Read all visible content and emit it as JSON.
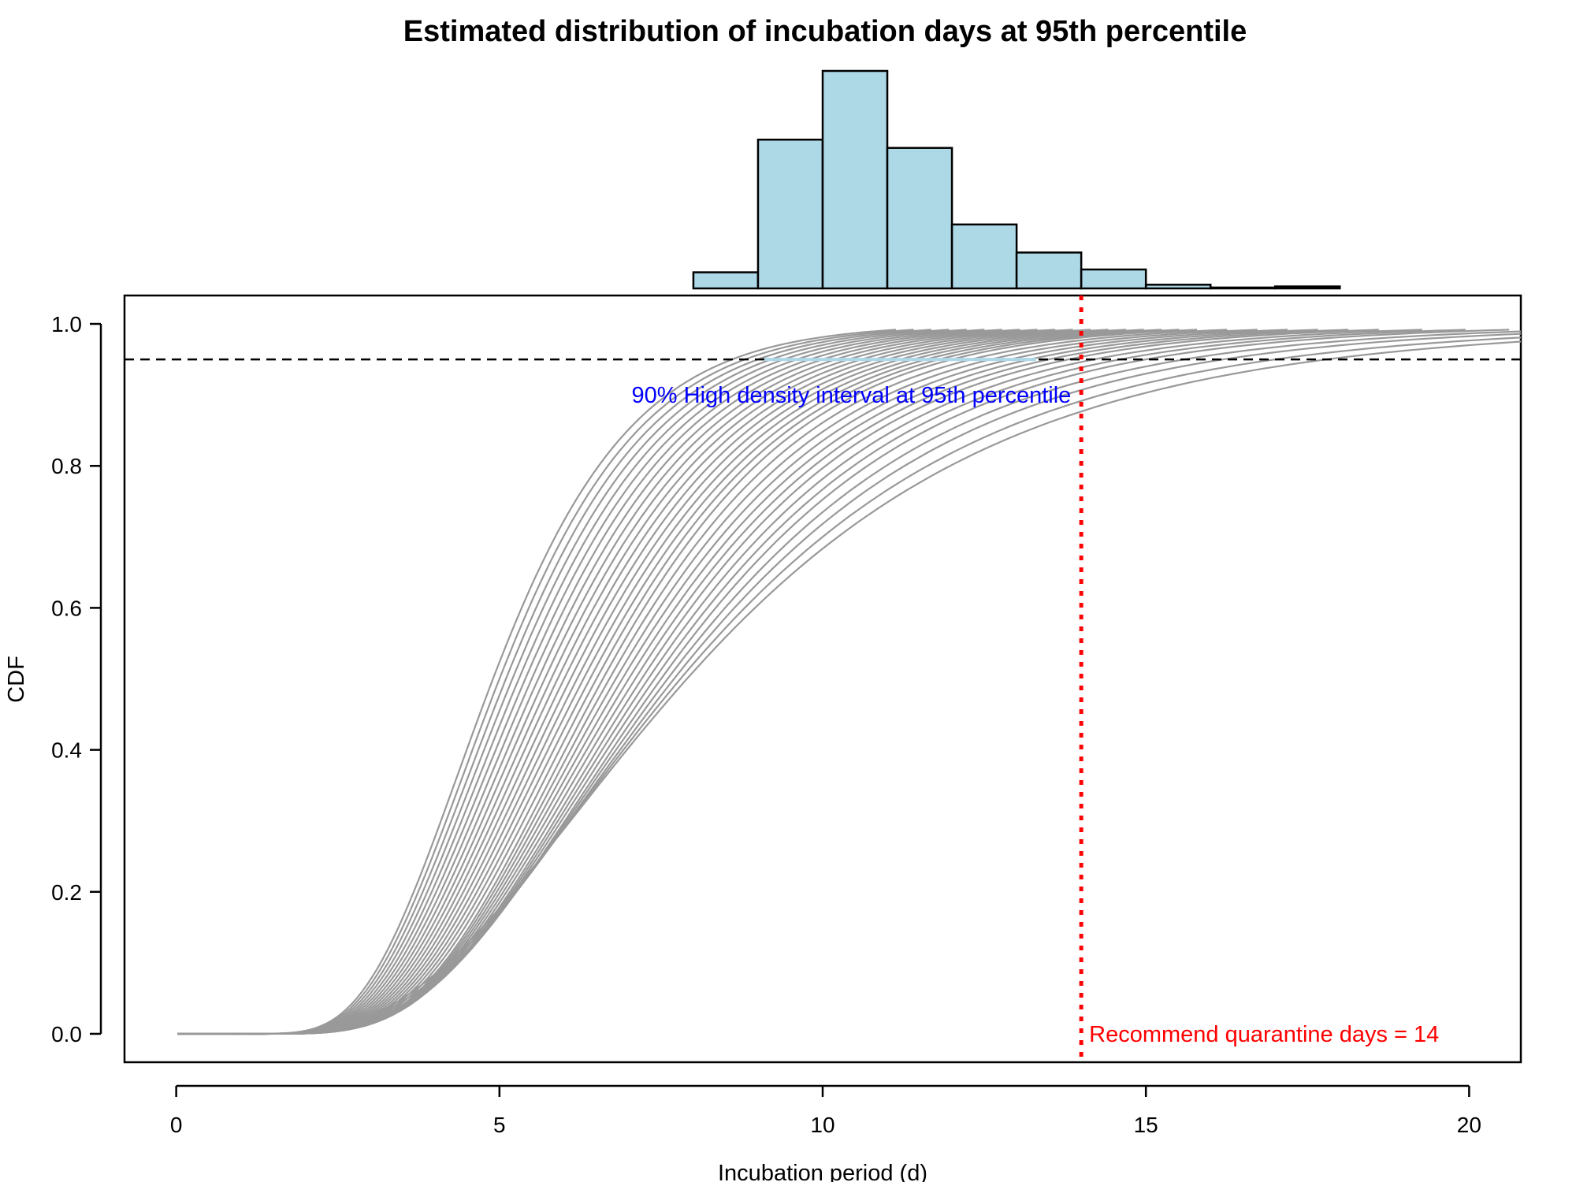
{
  "chart_data": {
    "type": "line",
    "title": "Estimated distribution of incubation days at 95th percentile",
    "xlabel": "Incubation period (d)",
    "ylabel": "CDF",
    "xlim": [
      -0.8,
      20.8
    ],
    "ylim": [
      -0.04,
      1.04
    ],
    "x_ticks": [
      {
        "value": 0,
        "label": "0"
      },
      {
        "value": 5,
        "label": "5"
      },
      {
        "value": 10,
        "label": "10"
      },
      {
        "value": 15,
        "label": "15"
      },
      {
        "value": 20,
        "label": "20"
      }
    ],
    "y_ticks": [
      {
        "value": 0.0,
        "label": "0.0"
      },
      {
        "value": 0.2,
        "label": "0.2"
      },
      {
        "value": 0.4,
        "label": "0.4"
      },
      {
        "value": 0.6,
        "label": "0.6"
      },
      {
        "value": 0.8,
        "label": "0.8"
      },
      {
        "value": 1.0,
        "label": "1.0"
      }
    ],
    "grid": false,
    "cdf_curves": {
      "color": "#999999",
      "description_note": "",
      "representative_medians_days": [
        4.9,
        5.0,
        5.1,
        5.2,
        5.3,
        5.4,
        5.5,
        5.6,
        5.7,
        5.8,
        5.9,
        6.0,
        6.1,
        6.2,
        6.3,
        6.4,
        6.5,
        6.6,
        6.7,
        6.8,
        6.9,
        7.0,
        7.1,
        7.2,
        7.3,
        7.4,
        7.5,
        7.6,
        7.7,
        7.8,
        7.9
      ],
      "representative_p95_days": [
        8.6,
        8.8,
        9.0,
        9.2,
        9.4,
        9.6,
        9.8,
        10.0,
        10.2,
        10.4,
        10.6,
        10.8,
        11.0,
        11.2,
        11.4,
        11.6,
        11.8,
        12.0,
        12.3,
        12.6,
        12.9,
        13.2,
        13.5,
        13.8,
        14.2,
        14.6,
        15.0,
        15.6,
        16.2,
        17.0,
        17.8
      ]
    },
    "reference_line": {
      "y": 0.95,
      "style": "dashed",
      "color": "#000000"
    },
    "hdi_segment": {
      "x_start": 9.1,
      "x_end": 13.3,
      "y": 0.95,
      "color": "#add8e6",
      "label": "90% High density interval at 95th percentile",
      "label_color": "#0000ff"
    },
    "quarantine_line": {
      "x": 14,
      "style": "dotted",
      "color": "#ff0000",
      "label": "Recommend quarantine days = 14"
    },
    "histogram": {
      "fill": "#add8e6",
      "stroke": "#000000",
      "bins": [
        {
          "x0": 8,
          "x1": 9,
          "relative_height": 0.074
        },
        {
          "x0": 9,
          "x1": 10,
          "relative_height": 0.684
        },
        {
          "x0": 10,
          "x1": 11,
          "relative_height": 1.0
        },
        {
          "x0": 11,
          "x1": 12,
          "relative_height": 0.646
        },
        {
          "x0": 12,
          "x1": 13,
          "relative_height": 0.294
        },
        {
          "x0": 13,
          "x1": 14,
          "relative_height": 0.165
        },
        {
          "x0": 14,
          "x1": 15,
          "relative_height": 0.087
        },
        {
          "x0": 15,
          "x1": 16,
          "relative_height": 0.017
        },
        {
          "x0": 16,
          "x1": 17,
          "relative_height": 0.004
        },
        {
          "x0": 17,
          "x1": 18,
          "relative_height": 0.009
        }
      ]
    }
  }
}
